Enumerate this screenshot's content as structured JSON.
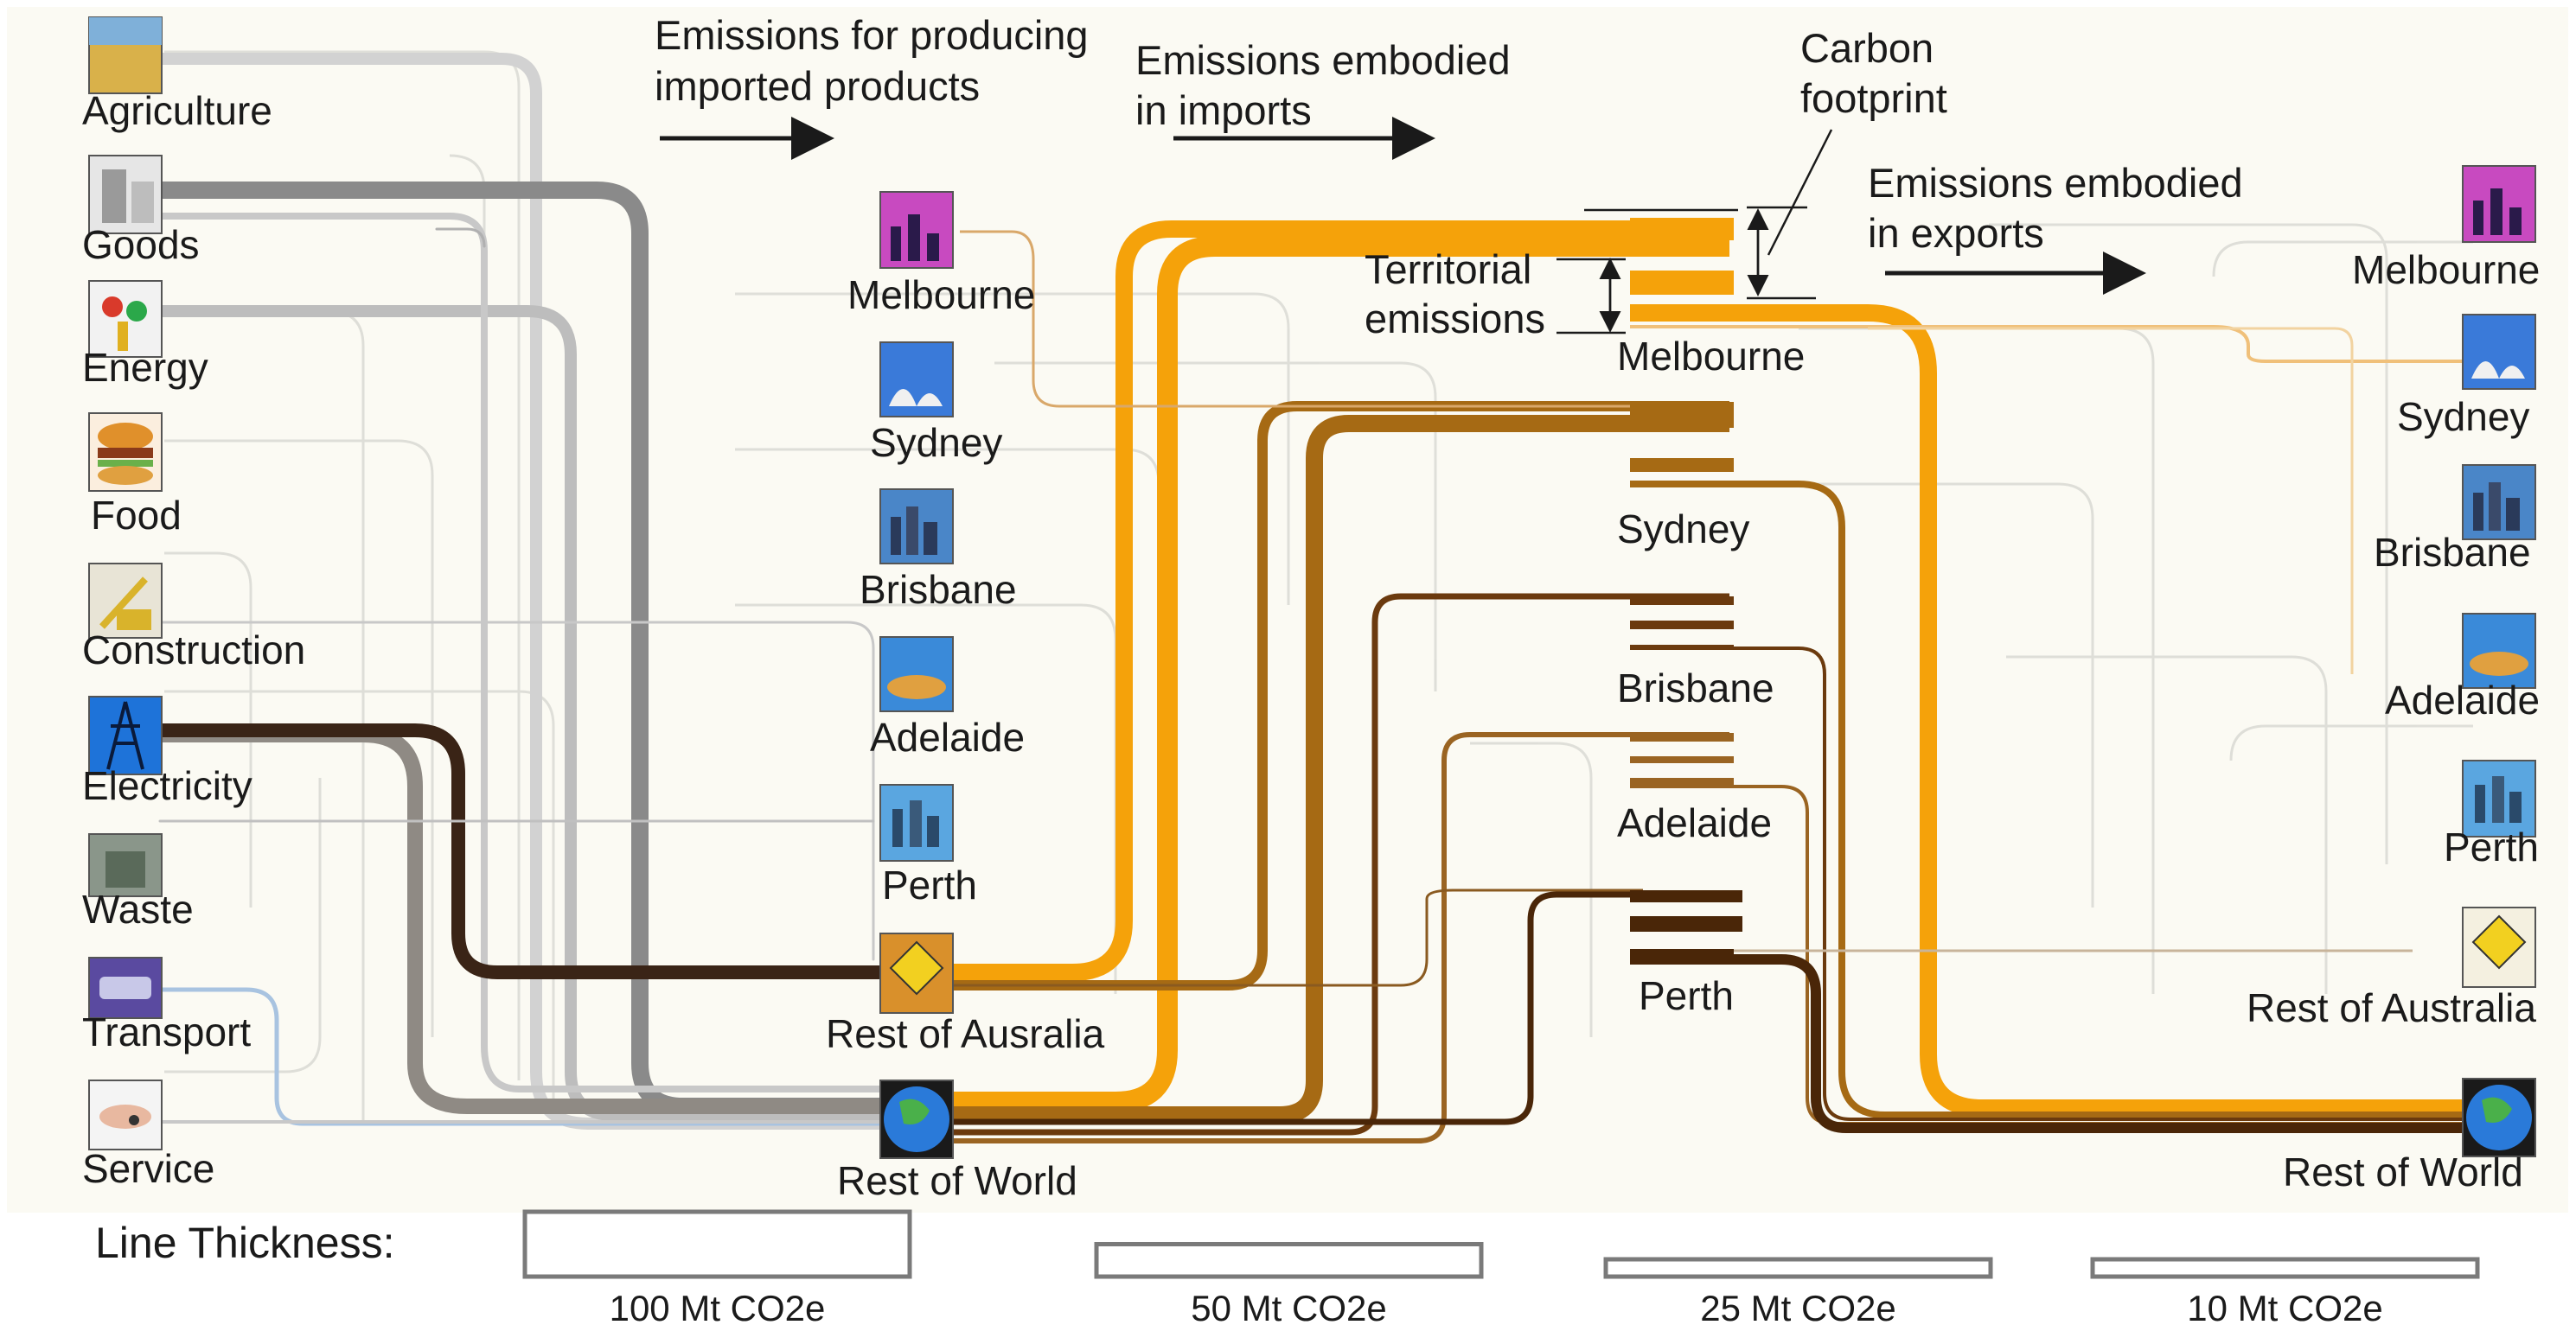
{
  "headers": {
    "producing": [
      "Emissions for producing",
      "imported products"
    ],
    "embodied_imports": [
      "Emissions embodied",
      "in imports"
    ],
    "carbon_footprint": [
      "Carbon",
      "footprint"
    ],
    "territorial": [
      "Territorial",
      "emissions"
    ],
    "embodied_exports": [
      "Emissions embodied",
      "in exports"
    ]
  },
  "sectors": [
    {
      "label": "Agriculture",
      "icon": "wheat-field-icon",
      "color": "#c8a24a"
    },
    {
      "label": "Goods",
      "icon": "appliances-icon",
      "color": "#bdbdbd"
    },
    {
      "label": "Energy",
      "icon": "fuel-pump-icon",
      "color": "#d93a2b"
    },
    {
      "label": "Food",
      "icon": "burger-icon",
      "color": "#d98a2b"
    },
    {
      "label": "Construction",
      "icon": "excavator-icon",
      "color": "#d9b32b"
    },
    {
      "label": "Electricity",
      "icon": "power-pylon-icon",
      "color": "#1e73d9"
    },
    {
      "label": "Waste",
      "icon": "waste-bin-icon",
      "color": "#7a8a7a"
    },
    {
      "label": "Transport",
      "icon": "transport-icon",
      "color": "#5a4aa0"
    },
    {
      "label": "Service",
      "icon": "handshake-icon",
      "color": "#c0c0c0"
    }
  ],
  "import_regions": [
    {
      "label": "Melbourne",
      "icon": "melbourne-skyline-icon"
    },
    {
      "label": "Sydney",
      "icon": "sydney-opera-house-icon"
    },
    {
      "label": "Brisbane",
      "icon": "brisbane-skyline-icon"
    },
    {
      "label": "Adelaide",
      "icon": "adelaide-skyline-icon"
    },
    {
      "label": "Perth",
      "icon": "perth-skyline-icon"
    },
    {
      "label": "Rest of Ausralia",
      "icon": "kangaroo-sign-icon"
    },
    {
      "label": "Rest of World",
      "icon": "globe-icon"
    }
  ],
  "cities": [
    {
      "label": "Melbourne",
      "color": "#f5a20a"
    },
    {
      "label": "Sydney",
      "color": "#a66a14"
    },
    {
      "label": "Brisbane",
      "color": "#6b3a0e"
    },
    {
      "label": "Adelaide",
      "color": "#9a6422"
    },
    {
      "label": "Perth",
      "color": "#4a2608"
    }
  ],
  "export_regions": [
    {
      "label": "Melbourne",
      "icon": "melbourne-skyline-icon"
    },
    {
      "label": "Sydney",
      "icon": "sydney-opera-house-icon"
    },
    {
      "label": "Brisbane",
      "icon": "brisbane-skyline-icon"
    },
    {
      "label": "Adelaide",
      "icon": "adelaide-skyline-icon"
    },
    {
      "label": "Perth",
      "icon": "perth-skyline-icon"
    },
    {
      "label": "Rest of Australia",
      "icon": "kangaroo-sign-icon"
    },
    {
      "label": "Rest of World",
      "icon": "globe-icon"
    }
  ],
  "legend": {
    "title": "Line Thickness:",
    "items": [
      {
        "label": "100 Mt CO2e",
        "mt": 100
      },
      {
        "label": "50 Mt CO2e",
        "mt": 50
      },
      {
        "label": "25 Mt CO2e",
        "mt": 25
      },
      {
        "label": "10 Mt CO2e",
        "mt": 10
      }
    ]
  }
}
